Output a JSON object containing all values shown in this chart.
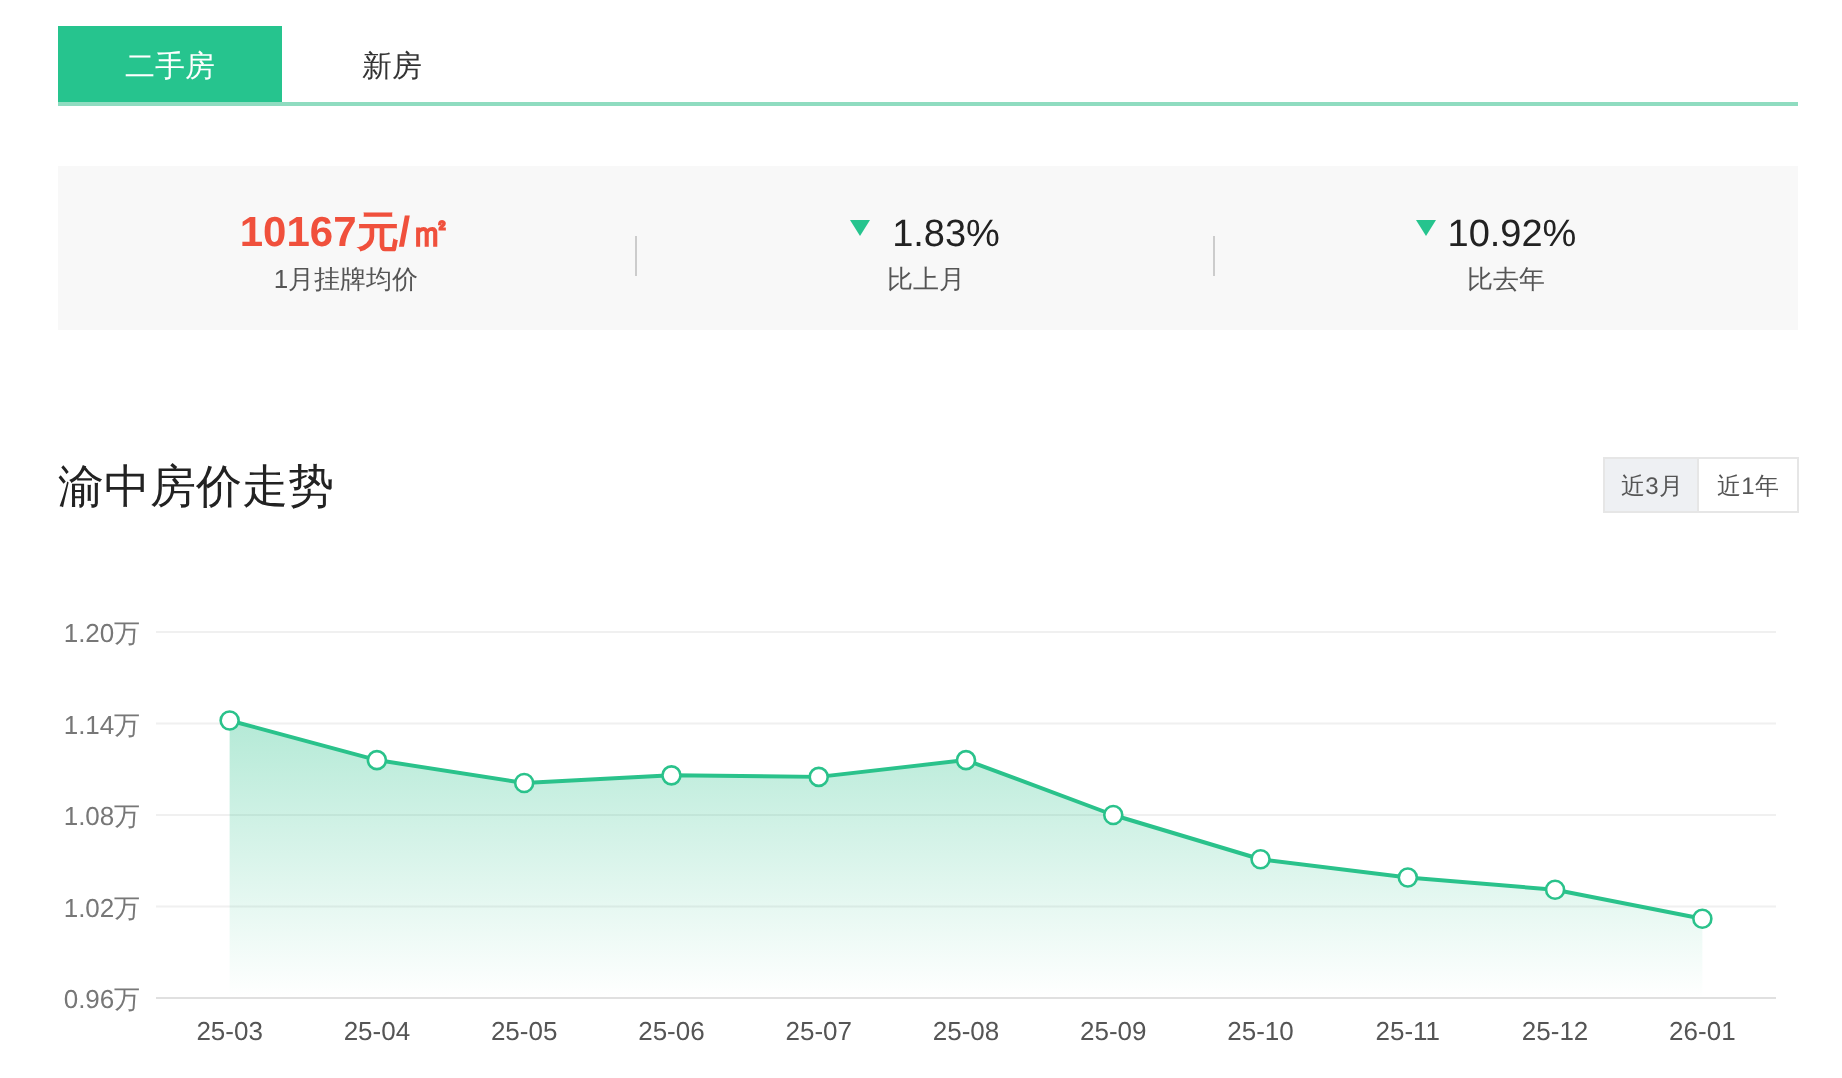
{
  "chart_data": [
    {
      "type": "other",
      "annotations": [
        "二手房",
        "新房",
        "10167元/㎡",
        "1月挂牌均价",
        "1.83%",
        "比上月",
        "10.92%",
        "比去年",
        "近3月",
        "近1年"
      ]
    },
    {
      "type": "area",
      "title": "渝中房价走势",
      "categories": [
        "25-03",
        "25-04",
        "25-05",
        "25-06",
        "25-07",
        "25-08",
        "25-09",
        "25-10",
        "25-11",
        "25-12",
        "26-01"
      ],
      "series": [
        {
          "color": "#2ac28b",
          "values": [
            1.142,
            1.116,
            1.101,
            1.106,
            1.105,
            1.116,
            1.08,
            1.051,
            1.039,
            1.031,
            1.012
          ]
        }
      ],
      "ylim": [
        0.96,
        1.2
      ],
      "yticks": [
        {
          "value": 0.96,
          "label": "0.96万"
        },
        {
          "value": 1.02,
          "label": "1.02万"
        },
        {
          "value": 1.08,
          "label": "1.08万"
        },
        {
          "value": 1.14,
          "label": "1.14万"
        },
        {
          "value": 1.2,
          "label": "1.20万"
        }
      ],
      "grid": "y",
      "marker": "circle",
      "line_style": "solid"
    }
  ]
}
